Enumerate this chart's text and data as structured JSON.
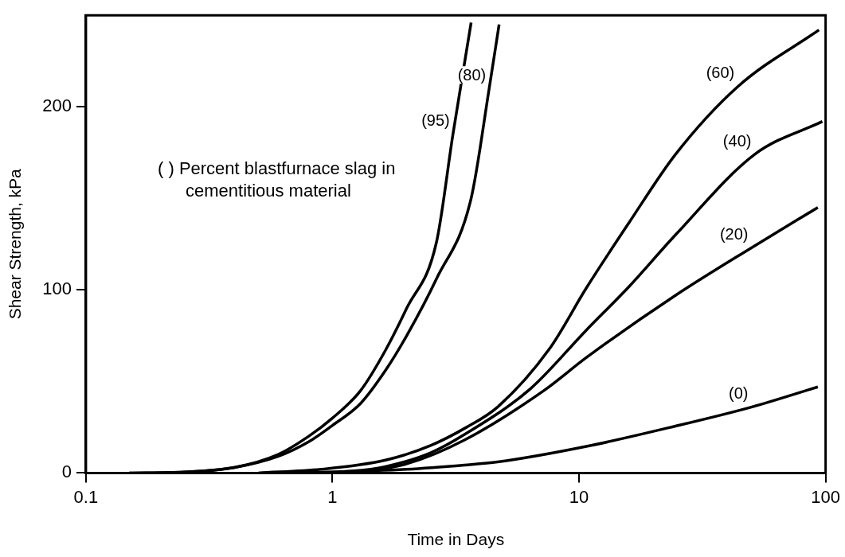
{
  "chart_data": {
    "type": "line",
    "xlabel": "Time in Days",
    "ylabel": "Shear Strength, kPa",
    "log": "x",
    "grid": false,
    "legend": false,
    "marker": "none",
    "line_style": "solid",
    "xlim": [
      0.1,
      100
    ],
    "xticks": [
      0.1,
      1,
      10,
      100
    ],
    "ylim": [
      0,
      250
    ],
    "yticks": [
      0,
      100,
      200
    ],
    "series": [
      {
        "name": "(95)",
        "color": "#000000",
        "x": [
          0.15,
          0.25,
          0.4,
          0.6,
          0.8,
          1,
          1.3,
          1.64,
          2,
          2.64,
          3.08,
          3.65
        ],
        "values": [
          0,
          0.5,
          3,
          10,
          20,
          30,
          45,
          67,
          90,
          126,
          185,
          246
        ]
      },
      {
        "name": "(80)",
        "color": "#000000",
        "x": [
          0.15,
          0.25,
          0.4,
          0.6,
          0.8,
          1,
          1.3,
          1.64,
          2,
          2.64,
          3.65,
          4.32,
          4.74
        ],
        "values": [
          0,
          0.5,
          3,
          9,
          17,
          26,
          38,
          56,
          75,
          106,
          150,
          210,
          245
        ]
      },
      {
        "name": "(60)",
        "color": "#000000",
        "x": [
          0.5,
          0.9,
          1.64,
          2.5,
          3.5,
          4.67,
          7.6,
          10.7,
          16,
          24.6,
          44,
          94
        ],
        "values": [
          0,
          2,
          7,
          15,
          25,
          36,
          68,
          101,
          137,
          174,
          211,
          242
        ]
      },
      {
        "name": "(40)",
        "color": "#000000",
        "x": [
          0.7,
          1.2,
          1.64,
          2.5,
          3.43,
          6.35,
          10.7,
          16,
          24.6,
          51.5,
          97
        ],
        "values": [
          0,
          1,
          3.5,
          11,
          21,
          46,
          78,
          102,
          130,
          174,
          192
        ]
      },
      {
        "name": "(20)",
        "color": "#000000",
        "x": [
          0.8,
          1.3,
          2,
          3.43,
          7.2,
          10.7,
          24.6,
          50,
          93
        ],
        "values": [
          0,
          1,
          5,
          18,
          45,
          63,
          97,
          123,
          145
        ]
      },
      {
        "name": "(0)",
        "color": "#000000",
        "x": [
          0.6,
          1,
          2,
          3.43,
          4.67,
          10.7,
          24.6,
          50,
          93
        ],
        "values": [
          0,
          0.5,
          2,
          4.3,
          6,
          14.5,
          25.6,
          36,
          47
        ]
      }
    ],
    "annotations": [
      "( ) Percent blastfurnace slag in cementitious material"
    ]
  }
}
